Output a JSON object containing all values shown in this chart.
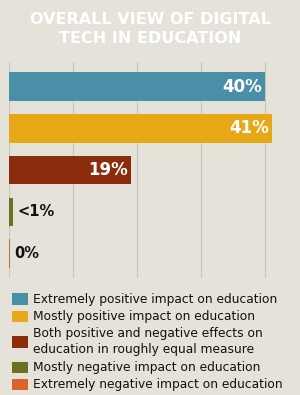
{
  "title": "OVERALL VIEW OF DIGITAL\nTECH IN EDUCATION",
  "categories": [
    "Extremely positive impact on education",
    "Mostly positive impact on education",
    "Both positive and negative effects on\neducation in roughly equal measure",
    "Mostly negative impact on education",
    "Extremely negative impact on education"
  ],
  "values": [
    40,
    41,
    19,
    0.7,
    0.15
  ],
  "display_labels": [
    "40%",
    "41%",
    "19%",
    "<1%",
    "0%"
  ],
  "label_inside": [
    true,
    true,
    true,
    false,
    false
  ],
  "bar_colors": [
    "#4a8fa8",
    "#e6a817",
    "#8b2c0c",
    "#6b7022",
    "#d9632a"
  ],
  "background_color": "#e5e2da",
  "title_bg_color": "#111111",
  "title_text_color": "#ffffff",
  "bar_label_color_inside": "#ffffff",
  "bar_label_color_outside": "#111111",
  "xlim": [
    0,
    44
  ],
  "bar_height": 0.68,
  "title_fontsize": 11.5,
  "label_fontsize": 12,
  "legend_fontsize": 8.8,
  "grid_color": "#c8c5bc",
  "grid_values": [
    0,
    10,
    20,
    30,
    40
  ]
}
